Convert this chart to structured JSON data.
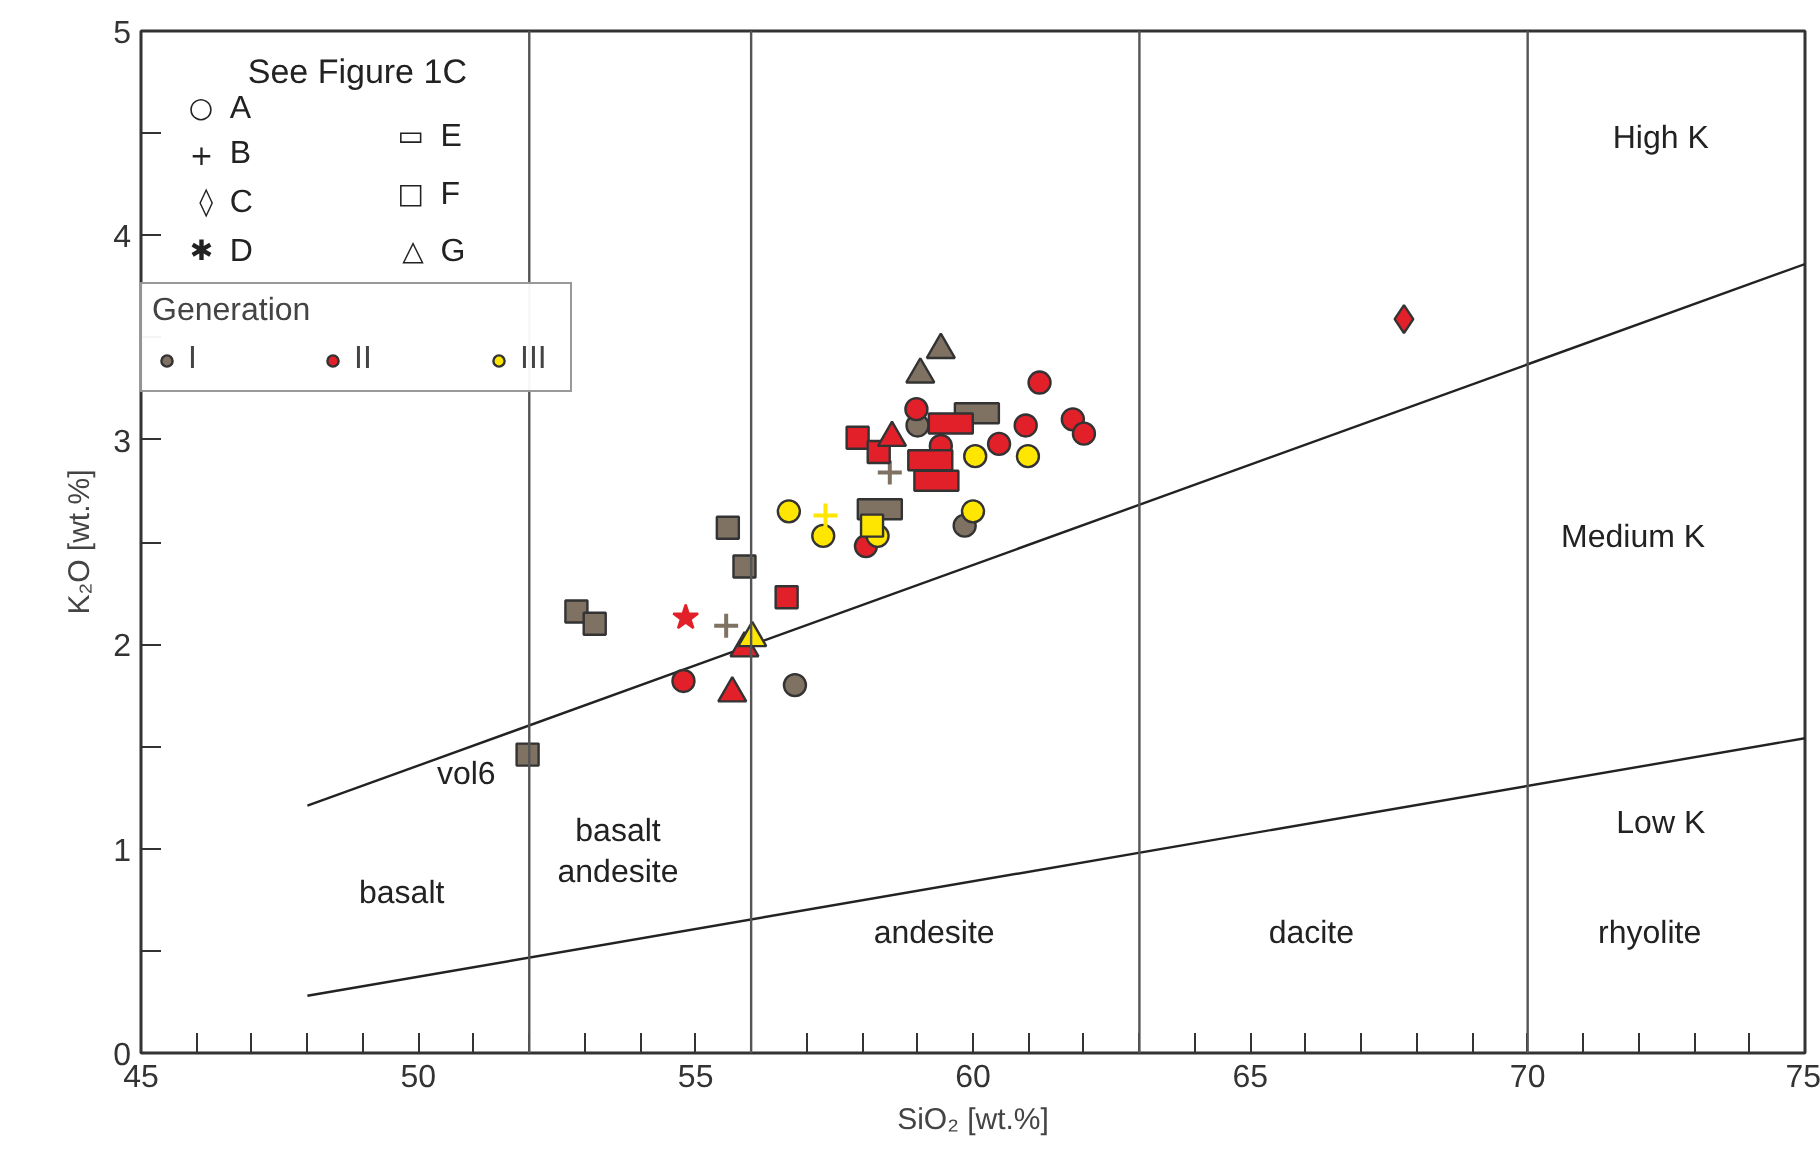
{
  "chart_data": {
    "type": "scatter",
    "xlabel": "SiO₂ [wt.%]",
    "ylabel": "K₂O [wt.%]",
    "legend_title": "Generation",
    "xlim": [
      45,
      75
    ],
    "ylim": [
      0,
      5
    ],
    "xticks": [
      45,
      {
        "value": 46,
        "label": null
      },
      {
        "value": 47,
        "label": null
      },
      {
        "value": 48,
        "label": null
      },
      {
        "value": 49,
        "label": null
      },
      50,
      {
        "value": 51,
        "label": null
      },
      {
        "value": 52,
        "label": null
      },
      {
        "value": 53,
        "label": null
      },
      {
        "value": 54,
        "label": null
      },
      55,
      {
        "value": 56,
        "label": null
      },
      {
        "value": 57,
        "label": null
      },
      {
        "value": 58,
        "label": null
      },
      {
        "value": 59,
        "label": null
      },
      60,
      {
        "value": 61,
        "label": null
      },
      {
        "value": 62,
        "label": null
      },
      {
        "value": 63,
        "label": null
      },
      {
        "value": 64,
        "label": null
      },
      65,
      {
        "value": 66,
        "label": null
      },
      {
        "value": 67,
        "label": null
      },
      {
        "value": 68,
        "label": null
      },
      {
        "value": 69,
        "label": null
      },
      70,
      {
        "value": 71,
        "label": null
      },
      {
        "value": 72,
        "label": null
      },
      {
        "value": 73,
        "label": null
      },
      {
        "value": 74,
        "label": null
      },
      75
    ],
    "yticks": [
      0,
      {
        "value": 0.5,
        "label": null
      },
      1,
      {
        "value": 1.5,
        "label": null
      },
      2,
      {
        "value": 2.5,
        "label": null
      },
      3,
      {
        "value": 3.5,
        "label": null
      },
      4,
      {
        "value": 4.5,
        "label": null
      },
      5
    ],
    "legend": "top left",
    "ref_lines": [
      {
        "axis": "x",
        "value": 52,
        "color": "#555555"
      },
      {
        "axis": "x",
        "value": 56,
        "color": "#555555"
      },
      {
        "axis": "x",
        "value": 63,
        "color": "#555555"
      },
      {
        "axis": "x",
        "value": 70,
        "color": "#555555"
      }
    ],
    "annotations": [
      "See Figure 1C",
      "○",
      "A",
      "+",
      "B",
      "◊",
      "C",
      "✱",
      "D",
      "▭",
      "E",
      "□",
      "F",
      "△",
      "G",
      "High K",
      "Medium K",
      "Low K",
      "basalt",
      "basalt\nandesite",
      "andesite",
      "dacite",
      "rhyolite",
      {
        "text": "vol6",
        "x": 51.97,
        "y": 1.46
      }
    ],
    "series": [
      {
        "type": "line",
        "color": "#222222",
        "x": [
          48,
          75
        ],
        "values": [
          1.21,
          3.86
        ]
      },
      {
        "type": "line",
        "color": "#222222",
        "x": [
          48,
          75
        ],
        "values": [
          0.28,
          1.54
        ]
      },
      {
        "name": "I",
        "marker": "circle",
        "color": "#7f7263",
        "x": [
          59.0,
          59.85,
          56.79
        ],
        "values": [
          3.07,
          2.58,
          1.8
        ]
      },
      {
        "name": "II",
        "marker": "circle",
        "color": "#e2202a",
        "x": [
          61.2,
          58.98,
          60.95,
          61.8,
          62.0,
          59.42,
          60.47,
          58.07,
          54.78
        ],
        "values": [
          3.28,
          3.15,
          3.07,
          3.1,
          3.03,
          2.97,
          2.98,
          2.48,
          1.82
        ]
      },
      {
        "name": "III",
        "marker": "circle",
        "color": "#ffe600",
        "x": [
          60.04,
          60.99,
          56.68,
          60.0,
          57.3,
          58.28
        ],
        "values": [
          2.92,
          2.92,
          2.65,
          2.65,
          2.53,
          2.53
        ]
      },
      {
        "marker": "cross",
        "color": "#7f7263",
        "x": [
          58.5,
          55.55
        ],
        "values": [
          2.84,
          2.09
        ]
      },
      {
        "marker": "cross",
        "color": "#ffe600",
        "x": [
          57.34
        ],
        "values": [
          2.63
        ]
      },
      {
        "marker": "diamond",
        "color": "#e2202a",
        "x": [
          67.77
        ],
        "values": [
          3.59
        ]
      },
      {
        "marker": "star",
        "color": "#e2202a",
        "x": [
          54.82
        ],
        "values": [
          2.13
        ]
      },
      {
        "marker": "rectangle",
        "color": "#7f7263",
        "x": [
          60.07,
          58.32
        ],
        "values": [
          3.13,
          2.66
        ]
      },
      {
        "marker": "rectangle",
        "color": "#e2202a",
        "x": [
          59.6,
          59.23,
          59.34
        ],
        "values": [
          3.08,
          2.9,
          2.8
        ]
      },
      {
        "marker": "square",
        "color": "#7f7263",
        "x": [
          55.58,
          55.88,
          52.85,
          53.18,
          51.97
        ],
        "values": [
          2.57,
          2.38,
          2.16,
          2.1,
          1.46
        ]
      },
      {
        "marker": "square",
        "color": "#e2202a",
        "x": [
          57.92,
          58.3,
          56.64
        ],
        "values": [
          3.01,
          2.94,
          2.23
        ]
      },
      {
        "marker": "square",
        "color": "#ffe600",
        "x": [
          58.18
        ],
        "values": [
          2.58
        ]
      },
      {
        "marker": "triangle",
        "color": "#7f7263",
        "x": [
          59.42,
          59.05
        ],
        "values": [
          3.44,
          3.32
        ]
      },
      {
        "marker": "triangle",
        "color": "#e2202a",
        "x": [
          58.54,
          55.88,
          55.66
        ],
        "values": [
          3.01,
          1.98,
          1.76
        ]
      },
      {
        "marker": "triangle",
        "color": "#ffe600",
        "x": [
          56.02
        ],
        "values": [
          2.03
        ]
      }
    ]
  }
}
